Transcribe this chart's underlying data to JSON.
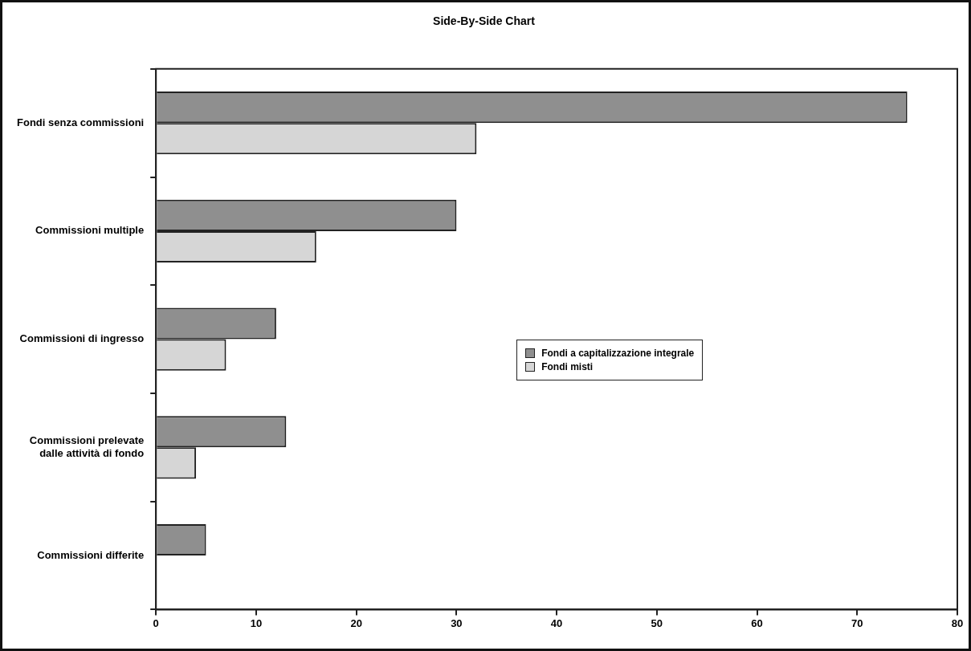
{
  "chart_data": {
    "type": "bar",
    "orientation": "horizontal",
    "title": "Side-By-Side Chart",
    "categories": [
      "Fondi senza commissioni",
      "Commissioni multiple",
      "Commissioni di ingresso",
      "Commissioni prelevate dalle attività di fondo",
      "Commissioni differite"
    ],
    "series": [
      {
        "name": "Fondi a capitalizzazione integrale",
        "color": "#8f8f8f",
        "values": [
          75,
          30,
          12,
          13,
          5
        ]
      },
      {
        "name": "Fondi misti",
        "color": "#d6d6d6",
        "values": [
          32,
          16,
          7,
          4,
          null
        ]
      }
    ],
    "xlim": [
      0,
      80
    ],
    "xticks": [
      0,
      10,
      20,
      30,
      40,
      50,
      60,
      70,
      80
    ],
    "grid": false,
    "legend": "right"
  }
}
